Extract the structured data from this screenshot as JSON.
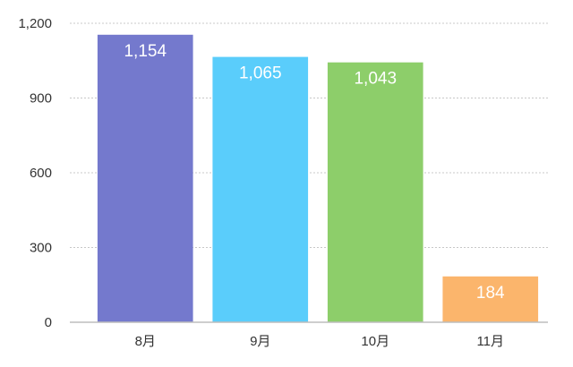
{
  "chart_data": {
    "type": "bar",
    "categories": [
      "8月",
      "9月",
      "10月",
      "11月"
    ],
    "values": [
      1154,
      1065,
      1043,
      184
    ],
    "value_labels": [
      "1,154",
      "1,065",
      "1,043",
      "184"
    ],
    "colors": [
      "#7479cd",
      "#5acdfb",
      "#8dce6a",
      "#fbb56c"
    ],
    "ylim": [
      0,
      1200
    ],
    "yticks": [
      0,
      300,
      600,
      900,
      1200
    ],
    "ytick_labels": [
      "0",
      "300",
      "600",
      "900",
      "1,200"
    ],
    "grid": true,
    "legend": "none"
  }
}
